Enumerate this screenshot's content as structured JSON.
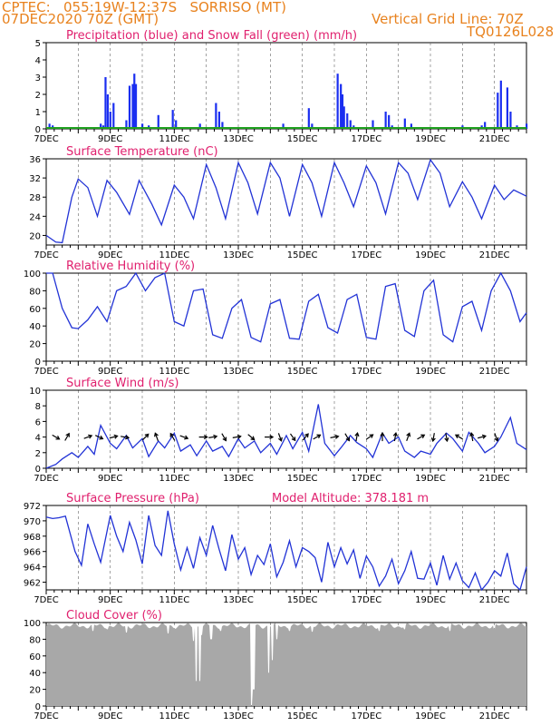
{
  "header": {
    "line1": "CPTEC:   055:19W-12:37S   SORRISO (MT)",
    "line2": "07DEC2020 70Z (GMT)",
    "grid_note": "Vertical Grid Line: 70Z",
    "code": "TQ0126L028"
  },
  "colors": {
    "header": "#e8821e",
    "title": "#e0206e",
    "precip": "#1a2ef0",
    "snow": "#1fa01f",
    "line": "#2233d6",
    "cloud": "#a8a8a8",
    "arrow": "#000000"
  },
  "chart_data": [
    {
      "id": "precip",
      "type": "bar",
      "title": "Precipitation (blue) and Snow Fall (green) (mm/h)",
      "ylim": [
        0,
        5
      ],
      "yticks": [
        0,
        1,
        2,
        3,
        4,
        5
      ],
      "x_days": [
        0,
        15
      ],
      "xtick_labels": [
        "7DEC",
        "9DEC",
        "11DEC",
        "13DEC",
        "15DEC",
        "17DEC",
        "19DEC",
        "21DEC"
      ],
      "series": [
        {
          "name": "Precipitation",
          "x": [
            0.1,
            0.2,
            1.4,
            1.5,
            1.7,
            1.78,
            1.85,
            1.92,
            2.0,
            2.1,
            2.5,
            2.6,
            2.7,
            2.75,
            2.8,
            2.9,
            3.0,
            3.1,
            3.2,
            3.5,
            3.95,
            4.05,
            4.15,
            4.8,
            4.9,
            5.3,
            5.4,
            5.5,
            5.6,
            7.4,
            7.5,
            8.2,
            8.3,
            8.4,
            9.1,
            9.2,
            9.25,
            9.3,
            9.4,
            9.5,
            9.6,
            9.7,
            10.2,
            10.3,
            10.6,
            10.7,
            10.8,
            11.1,
            11.2,
            11.4,
            12.8,
            13.0,
            13.6,
            13.7,
            14.1,
            14.2,
            14.4,
            14.5,
            14.7,
            15.0
          ],
          "values": [
            0.3,
            0.2,
            0.1,
            0.1,
            0.3,
            0.2,
            3.0,
            2.0,
            1.0,
            1.5,
            0.5,
            2.5,
            2.6,
            3.2,
            2.6,
            0.1,
            0.3,
            0.1,
            0.2,
            0.8,
            1.1,
            0.5,
            0.1,
            0.3,
            0.1,
            1.5,
            1.0,
            0.4,
            0.1,
            0.3,
            0.1,
            1.2,
            0.3,
            0.1,
            3.2,
            2.6,
            2.0,
            1.3,
            0.9,
            0.5,
            0.2,
            0.1,
            0.5,
            0.1,
            1.0,
            0.8,
            0.2,
            0.1,
            0.6,
            0.3,
            0.1,
            0.2,
            0.2,
            0.4,
            2.1,
            2.8,
            2.4,
            1.0,
            0.2,
            0.3
          ]
        },
        {
          "name": "Snow Fall",
          "values": [
            0
          ]
        }
      ]
    },
    {
      "id": "temp",
      "type": "line",
      "title": "Surface Temperature (nC)",
      "ylim": [
        18,
        36
      ],
      "yticks": [
        20,
        24,
        28,
        32,
        36
      ],
      "x_days": [
        0,
        15
      ],
      "xtick_labels": [
        "7DEC",
        "9DEC",
        "11DEC",
        "13DEC",
        "15DEC",
        "17DEC",
        "19DEC",
        "21DEC"
      ],
      "x": [
        0,
        0.3,
        0.5,
        0.8,
        1.0,
        1.3,
        1.6,
        1.9,
        2.2,
        2.6,
        2.9,
        3.3,
        3.6,
        4.0,
        4.3,
        4.6,
        5.0,
        5.3,
        5.6,
        6.0,
        6.3,
        6.6,
        7.0,
        7.3,
        7.6,
        8.0,
        8.3,
        8.6,
        9.0,
        9.3,
        9.6,
        10.0,
        10.3,
        10.6,
        11.0,
        11.3,
        11.6,
        12.0,
        12.3,
        12.6,
        13.0,
        13.3,
        13.6,
        14.0,
        14.3,
        14.6,
        15.0
      ],
      "values": [
        20,
        18.6,
        18.5,
        28,
        31.8,
        30,
        24,
        31.5,
        29,
        24.4,
        31.5,
        26.5,
        22.2,
        30.5,
        28,
        23.5,
        34.8,
        30,
        23.5,
        35.2,
        31,
        24.5,
        35.2,
        32,
        24,
        34.8,
        31,
        24,
        35.2,
        31,
        26,
        34.5,
        31,
        24.5,
        35.2,
        33,
        27.5,
        35.8,
        33,
        26,
        31.2,
        28,
        23.5,
        30.5,
        27.5,
        29.5,
        28.2
      ]
    },
    {
      "id": "rh",
      "type": "line",
      "title": "Relative Humidity (%)",
      "ylim": [
        0,
        100
      ],
      "yticks": [
        0,
        20,
        40,
        60,
        80,
        100
      ],
      "x_days": [
        0,
        15
      ],
      "xtick_labels": [
        "7DEC",
        "9DEC",
        "11DEC",
        "13DEC",
        "15DEC",
        "17DEC",
        "19DEC",
        "21DEC"
      ],
      "x": [
        0,
        0.2,
        0.5,
        0.8,
        1.0,
        1.3,
        1.6,
        1.9,
        2.2,
        2.5,
        2.8,
        3.1,
        3.4,
        3.7,
        4.0,
        4.3,
        4.6,
        4.9,
        5.2,
        5.5,
        5.8,
        6.1,
        6.4,
        6.7,
        7.0,
        7.3,
        7.6,
        7.9,
        8.2,
        8.5,
        8.8,
        9.1,
        9.4,
        9.7,
        10.0,
        10.3,
        10.6,
        10.9,
        11.2,
        11.5,
        11.8,
        12.1,
        12.4,
        12.7,
        13.0,
        13.3,
        13.6,
        13.9,
        14.2,
        14.5,
        14.8,
        15.0
      ],
      "values": [
        100,
        100,
        60,
        38,
        37,
        47,
        62,
        45,
        80,
        85,
        100,
        80,
        95,
        100,
        45,
        40,
        80,
        82,
        30,
        26,
        60,
        70,
        27,
        22,
        65,
        70,
        26,
        25,
        68,
        76,
        38,
        32,
        70,
        76,
        27,
        25,
        85,
        88,
        35,
        28,
        80,
        92,
        30,
        22,
        62,
        68,
        35,
        80,
        100,
        80,
        45,
        55
      ]
    },
    {
      "id": "wind",
      "type": "line",
      "title": "Surface Wind (m/s)",
      "ylim": [
        0,
        10
      ],
      "yticks": [
        0,
        2,
        4,
        6,
        8,
        10
      ],
      "x_days": [
        0,
        15
      ],
      "xtick_labels": [
        "7DEC",
        "9DEC",
        "11DEC",
        "13DEC",
        "15DEC",
        "17DEC",
        "19DEC",
        "21DEC"
      ],
      "x": [
        0,
        0.3,
        0.5,
        0.8,
        1.0,
        1.3,
        1.5,
        1.7,
        2.0,
        2.2,
        2.5,
        2.7,
        3.0,
        3.2,
        3.5,
        3.7,
        4.0,
        4.2,
        4.5,
        4.7,
        5.0,
        5.2,
        5.5,
        5.7,
        6.0,
        6.2,
        6.5,
        6.7,
        7.0,
        7.2,
        7.5,
        7.7,
        8.0,
        8.2,
        8.5,
        8.7,
        9.0,
        9.2,
        9.5,
        9.7,
        10.0,
        10.2,
        10.5,
        10.7,
        11.0,
        11.2,
        11.5,
        11.7,
        12.0,
        12.2,
        12.5,
        12.7,
        13.0,
        13.2,
        13.5,
        13.7,
        14.0,
        14.2,
        14.5,
        14.7,
        15.0
      ],
      "values": [
        0,
        0.5,
        1.2,
        2,
        1.4,
        2.8,
        1.8,
        5.5,
        3.2,
        2.5,
        4.2,
        2.6,
        3.8,
        1.5,
        3.5,
        2.6,
        4.5,
        2.2,
        3,
        1.6,
        3.5,
        2.2,
        2.8,
        1.5,
        3.8,
        2.6,
        3.5,
        2,
        3.2,
        1.8,
        4.2,
        2.5,
        4.6,
        2.2,
        8.2,
        3.2,
        1.6,
        2.6,
        4.2,
        3.3,
        2.5,
        1.4,
        4.5,
        3.2,
        4,
        2.2,
        1.4,
        2.2,
        1.8,
        3.2,
        4.5,
        3.8,
        2.2,
        4.6,
        3.2,
        2,
        2.8,
        4,
        6.5,
        3.2,
        2.4
      ],
      "arrows_x": [
        0.3,
        0.65,
        1.3,
        1.65,
        2.1,
        2.45,
        3.1,
        3.45,
        3.95,
        4.3,
        4.9,
        5.2,
        5.55,
        5.95,
        6.4,
        6.95,
        7.3,
        7.7,
        8.1,
        8.45,
        9.0,
        9.4,
        9.7,
        10.1,
        10.5,
        10.9,
        11.3,
        11.7,
        12.1,
        12.5,
        12.9,
        13.3,
        13.6,
        14.05
      ],
      "arrows_dir": [
        -30,
        60,
        20,
        -25,
        15,
        -10,
        45,
        110,
        120,
        -20,
        0,
        10,
        -60,
        10,
        -40,
        0,
        -70,
        -55,
        50,
        30,
        10,
        -60,
        80,
        35,
        90,
        80,
        70,
        30,
        -100,
        -80,
        150,
        100,
        15,
        -70
      ]
    },
    {
      "id": "pressure",
      "type": "line",
      "title": "Surface Pressure (hPa)",
      "annotation": "Model Altitude: 378.181 m",
      "ylim": [
        961,
        972
      ],
      "yticks": [
        962,
        964,
        966,
        968,
        970,
        972
      ],
      "x_days": [
        0,
        15
      ],
      "xtick_labels": [
        "7DEC",
        "9DEC",
        "11DEC",
        "13DEC",
        "15DEC",
        "17DEC",
        "19DEC",
        "21DEC"
      ],
      "x": [
        0,
        0.2,
        0.4,
        0.6,
        0.9,
        1.1,
        1.3,
        1.5,
        1.7,
        2.0,
        2.2,
        2.4,
        2.6,
        2.8,
        3.0,
        3.2,
        3.4,
        3.6,
        3.8,
        4.0,
        4.2,
        4.4,
        4.6,
        4.8,
        5.0,
        5.2,
        5.4,
        5.6,
        5.8,
        6.0,
        6.2,
        6.4,
        6.6,
        6.8,
        7.0,
        7.2,
        7.4,
        7.6,
        7.8,
        8.0,
        8.2,
        8.4,
        8.6,
        8.8,
        9.0,
        9.2,
        9.4,
        9.6,
        9.8,
        10.0,
        10.2,
        10.4,
        10.6,
        10.8,
        11.0,
        11.2,
        11.4,
        11.6,
        11.8,
        12.0,
        12.2,
        12.4,
        12.6,
        12.8,
        13.0,
        13.2,
        13.4,
        13.6,
        13.8,
        14.0,
        14.2,
        14.4,
        14.6,
        14.8,
        15.0
      ],
      "values": [
        970.5,
        970.3,
        970.4,
        970.6,
        966,
        964.2,
        969.6,
        967,
        964.6,
        970.7,
        968,
        966,
        969.8,
        967.5,
        964.4,
        970.7,
        966.8,
        965.5,
        971.3,
        967,
        963.6,
        966.5,
        963.8,
        967.8,
        965.5,
        969.4,
        966.3,
        963.5,
        968.2,
        965,
        966.5,
        963,
        965.5,
        964.3,
        967,
        962.7,
        964.6,
        967.4,
        964,
        966.5,
        966,
        965.2,
        962,
        967.2,
        964,
        966.5,
        964.4,
        966.2,
        962.5,
        965.4,
        964,
        961.5,
        962.8,
        965,
        961.8,
        963.5,
        966,
        962.5,
        962.4,
        964.5,
        961.6,
        965.5,
        962.4,
        964.5,
        962.2,
        961.3,
        963.2,
        961,
        962,
        963.5,
        962.8,
        965.8,
        961.8,
        961,
        964
      ]
    },
    {
      "id": "cloud",
      "type": "area",
      "title": "Cloud Cover (%)",
      "ylim": [
        0,
        100
      ],
      "yticks": [
        0,
        20,
        40,
        60,
        80,
        100
      ],
      "x_days": [
        0,
        15
      ],
      "xtick_labels": [
        "7DEC",
        "9DEC",
        "11DEC",
        "13DEC",
        "15DEC",
        "17DEC",
        "19DEC",
        "21DEC"
      ],
      "base": 96,
      "dips": [
        [
          1.45,
          90
        ],
        [
          1.9,
          92
        ],
        [
          2.5,
          88
        ],
        [
          3.8,
          87
        ],
        [
          4.6,
          78
        ],
        [
          4.68,
          30
        ],
        [
          4.8,
          30
        ],
        [
          4.86,
          85
        ],
        [
          5.15,
          80
        ],
        [
          5.45,
          90
        ],
        [
          6.4,
          0
        ],
        [
          6.48,
          20
        ],
        [
          6.95,
          40
        ],
        [
          7.05,
          55
        ],
        [
          7.2,
          80
        ],
        [
          7.6,
          90
        ],
        [
          8.3,
          89
        ],
        [
          10.4,
          90
        ],
        [
          11.2,
          92
        ],
        [
          12.6,
          90
        ],
        [
          14.0,
          92
        ]
      ]
    }
  ]
}
